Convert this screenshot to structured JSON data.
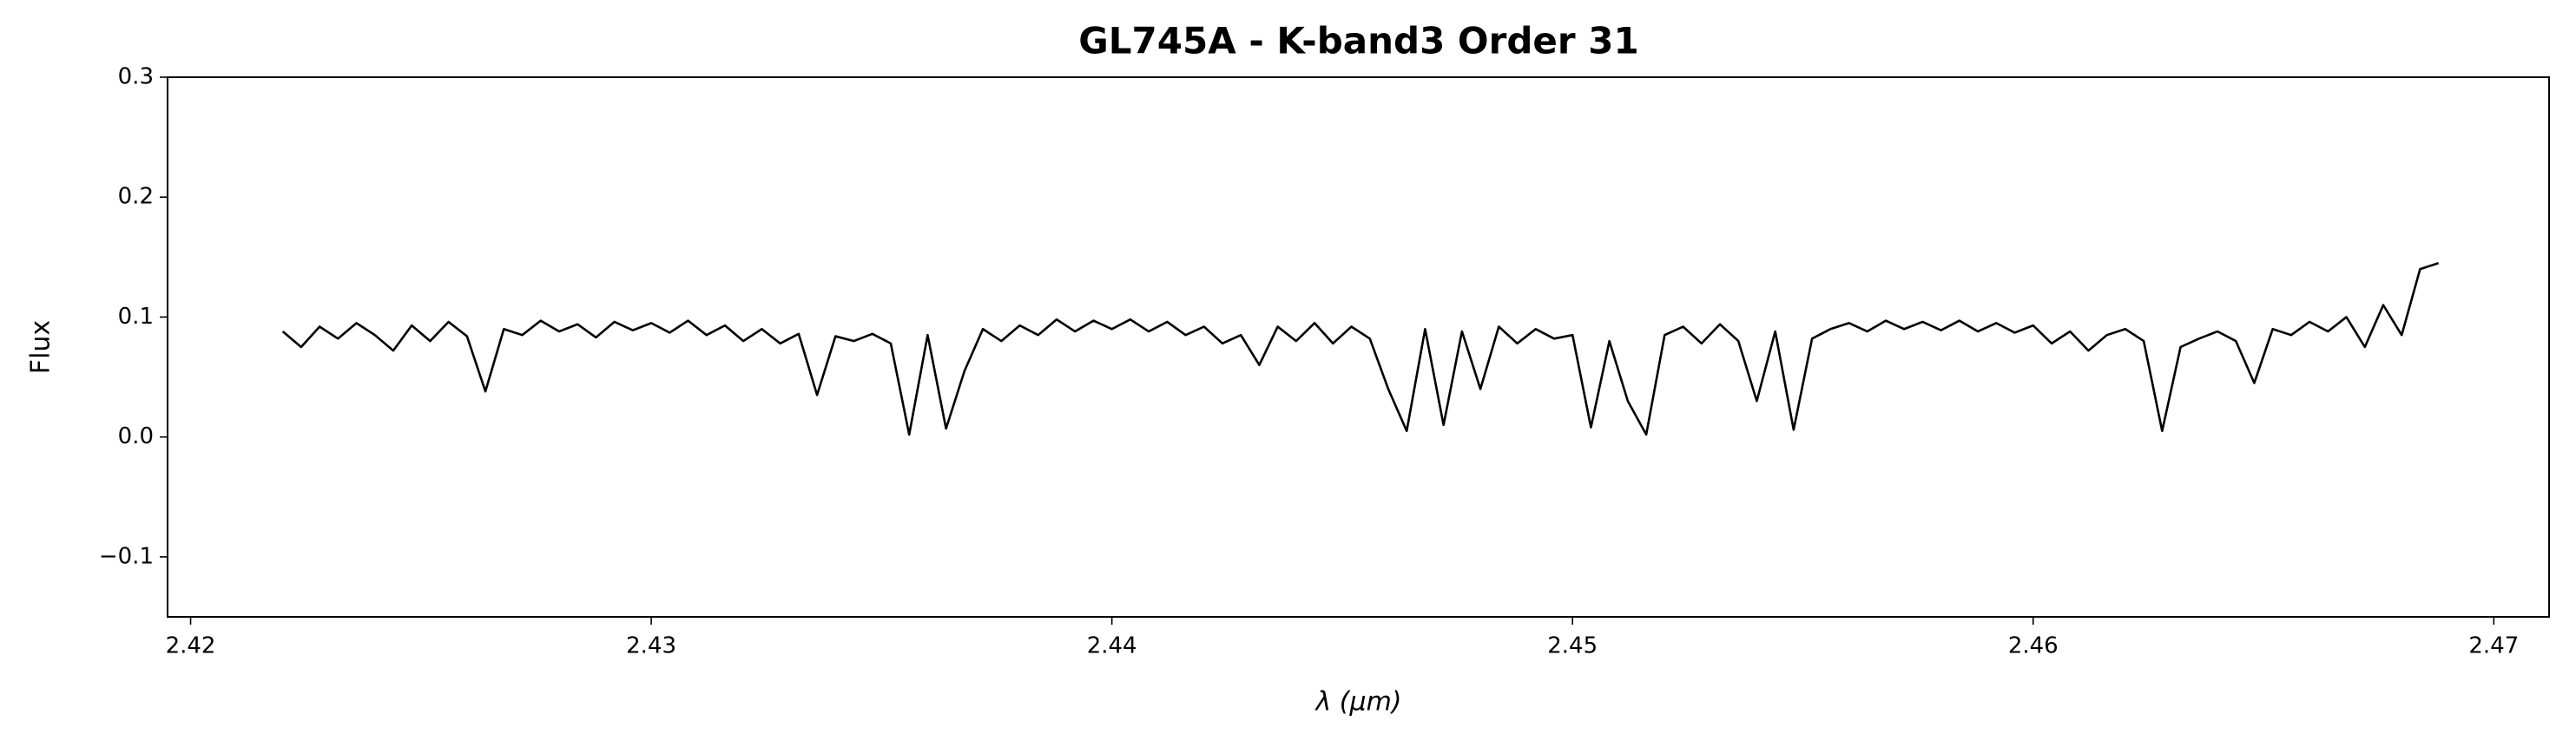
{
  "chart_data": {
    "type": "line",
    "title": "GL745A - K-band3 Order 31",
    "xlabel": "λ (μm)",
    "ylabel": "Flux",
    "x": [
      2.422,
      2.4224,
      2.4228,
      2.4232,
      2.4236,
      2.424,
      2.4244,
      2.4248,
      2.4252,
      2.4256,
      2.426,
      2.4264,
      2.4268,
      2.4272,
      2.4276,
      2.428,
      2.4284,
      2.4288,
      2.4292,
      2.4296,
      2.43,
      2.4304,
      2.4308,
      2.4312,
      2.4316,
      2.432,
      2.4324,
      2.4328,
      2.4332,
      2.4336,
      2.434,
      2.4344,
      2.4348,
      2.4352,
      2.4356,
      2.436,
      2.4364,
      2.4368,
      2.4372,
      2.4376,
      2.438,
      2.4384,
      2.4388,
      2.4392,
      2.4396,
      2.44,
      2.4404,
      2.4408,
      2.4412,
      2.4416,
      2.442,
      2.4424,
      2.4428,
      2.4432,
      2.4436,
      2.444,
      2.4444,
      2.4448,
      2.4452,
      2.4456,
      2.446,
      2.4464,
      2.4468,
      2.4472,
      2.4476,
      2.448,
      2.4484,
      2.4488,
      2.4492,
      2.4496,
      2.45,
      2.4504,
      2.4508,
      2.4512,
      2.4516,
      2.452,
      2.4524,
      2.4528,
      2.4532,
      2.4536,
      2.454,
      2.4544,
      2.4548,
      2.4552,
      2.4556,
      2.456,
      2.4564,
      2.4568,
      2.4572,
      2.4576,
      2.458,
      2.4584,
      2.4588,
      2.4592,
      2.4596,
      2.46,
      2.4604,
      2.4608,
      2.4612,
      2.4616,
      2.462,
      2.4624,
      2.4628,
      2.4632,
      2.4636,
      2.464,
      2.4644,
      2.4648,
      2.4652,
      2.4656,
      2.466,
      2.4664,
      2.4668,
      2.4672,
      2.4676,
      2.468,
      2.4684,
      2.4688
    ],
    "series": [
      {
        "name": "Flux",
        "color": "#000000",
        "values": [
          0.088,
          0.075,
          0.092,
          0.082,
          0.095,
          0.085,
          0.072,
          0.093,
          0.08,
          0.096,
          0.084,
          0.038,
          0.09,
          0.085,
          0.097,
          0.088,
          0.094,
          0.083,
          0.096,
          0.089,
          0.095,
          0.087,
          0.097,
          0.085,
          0.093,
          0.08,
          0.09,
          0.078,
          0.086,
          0.035,
          0.084,
          0.08,
          0.086,
          0.078,
          0.002,
          0.085,
          0.007,
          0.055,
          0.09,
          0.08,
          0.093,
          0.085,
          0.098,
          0.088,
          0.097,
          0.09,
          0.098,
          0.088,
          0.096,
          0.085,
          0.092,
          0.078,
          0.085,
          0.06,
          0.092,
          0.08,
          0.095,
          0.078,
          0.092,
          0.082,
          0.04,
          0.005,
          0.09,
          0.01,
          0.088,
          0.04,
          0.092,
          0.078,
          0.09,
          0.082,
          0.085,
          0.008,
          0.08,
          0.03,
          0.002,
          0.085,
          0.092,
          0.078,
          0.094,
          0.08,
          0.03,
          0.088,
          0.006,
          0.082,
          0.09,
          0.095,
          0.088,
          0.097,
          0.09,
          0.096,
          0.089,
          0.097,
          0.088,
          0.095,
          0.087,
          0.093,
          0.078,
          0.088,
          0.072,
          0.085,
          0.09,
          0.08,
          0.005,
          0.075,
          0.082,
          0.088,
          0.08,
          0.045,
          0.09,
          0.085,
          0.096,
          0.088,
          0.1,
          0.075,
          0.11,
          0.085,
          0.14,
          0.145
        ]
      }
    ],
    "xlim": [
      2.4195,
      2.4712
    ],
    "ylim": [
      -0.15,
      0.3
    ],
    "xticks": [
      2.42,
      2.43,
      2.44,
      2.45,
      2.46,
      2.47
    ],
    "yticks": [
      {
        "value": -0.1,
        "label": "−0.1"
      },
      {
        "value": 0,
        "label": "0.0"
      },
      0.1,
      0.2,
      0.3
    ],
    "grid": false
  }
}
